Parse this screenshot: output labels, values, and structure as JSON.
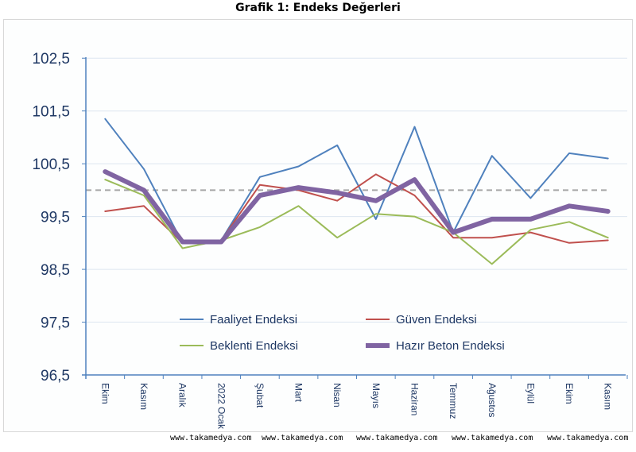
{
  "chart_data": {
    "type": "line",
    "title": "Grafik 1: Endeks Değerleri",
    "xlabel": "",
    "ylabel": "",
    "ylim": [
      96.5,
      103.0
    ],
    "yticks": [
      96.5,
      97.5,
      98.5,
      99.5,
      100.5,
      101.5,
      102.5
    ],
    "ytick_labels": [
      "96,5",
      "97,5",
      "98,5",
      "99,5",
      "100,5",
      "101,5",
      "102,5"
    ],
    "categories": [
      "Ekim",
      "Kasım",
      "Aralık",
      "2022 Ocak",
      "Şubat",
      "Mart",
      "Nisan",
      "Mayıs",
      "Haziran",
      "Temmuz",
      "Ağustos",
      "Eylül",
      "Ekim",
      "Kasım"
    ],
    "reference_line": 100,
    "grid": true,
    "legend_position": "bottom-center",
    "series": [
      {
        "name": "Faaliyet Endeksi",
        "color": "#4f81bd",
        "width": 2,
        "values": [
          101.35,
          100.4,
          99.0,
          99.05,
          100.25,
          100.45,
          100.85,
          99.45,
          101.2,
          99.2,
          100.65,
          99.85,
          100.7,
          100.6
        ]
      },
      {
        "name": "Güven Endeksi",
        "color": "#c0504d",
        "width": 2,
        "values": [
          99.6,
          99.7,
          99.0,
          99.05,
          100.1,
          100.0,
          99.8,
          100.3,
          99.9,
          99.1,
          99.1,
          99.2,
          99.0,
          99.05
        ]
      },
      {
        "name": "Beklenti Endeksi",
        "color": "#9bbb59",
        "width": 2,
        "values": [
          100.2,
          99.9,
          98.9,
          99.05,
          99.3,
          99.7,
          99.1,
          99.55,
          99.5,
          99.2,
          98.6,
          99.25,
          99.4,
          99.1
        ]
      },
      {
        "name": "Hazır Beton Endeksi",
        "color": "#8064a2",
        "width": 6,
        "values": [
          100.35,
          100.0,
          99.02,
          99.02,
          99.9,
          100.05,
          99.95,
          99.8,
          100.2,
          99.2,
          99.45,
          99.45,
          99.7,
          99.6
        ]
      }
    ]
  },
  "watermark": {
    "items": [
      "www.takamedya.com",
      "www.takamedya.com",
      "www.takamedya.com",
      "www.takamedya.com",
      "www.takamedya.com"
    ]
  }
}
